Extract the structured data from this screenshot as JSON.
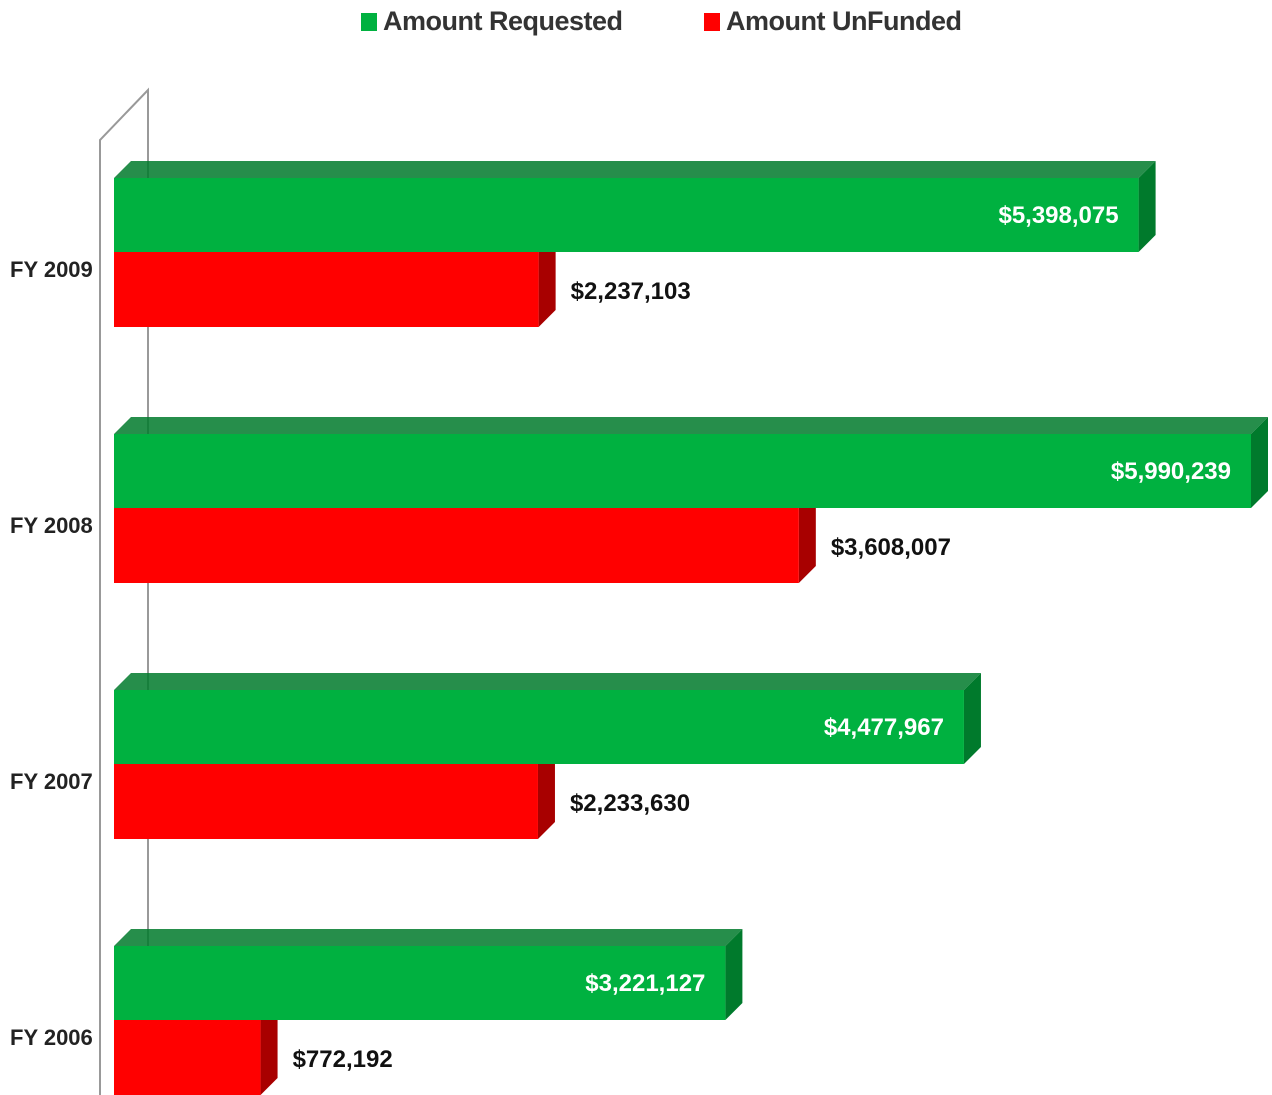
{
  "chart_data": {
    "type": "bar",
    "orientation": "horizontal",
    "categories": [
      "FY 2009",
      "FY 2008",
      "FY 2007",
      "FY 2006"
    ],
    "series": [
      {
        "name": "Amount Requested",
        "color": "#00b140",
        "side_color": "#007a2c",
        "values": [
          5398075,
          5990239,
          4477967,
          3221127
        ],
        "labels": [
          "$5,398,075",
          "$5,990,239",
          "$4,477,967",
          "$3,221,127"
        ]
      },
      {
        "name": "Amount UnFunded",
        "color": "#ff0000",
        "side_color": "#a80000",
        "values": [
          2237103,
          3608007,
          2233630,
          772192
        ],
        "labels": [
          "$2,237,103",
          "$3,608,007",
          "$2,233,630",
          "$772,192"
        ]
      }
    ],
    "legend": "top-center",
    "grid": false,
    "style": "3d"
  }
}
